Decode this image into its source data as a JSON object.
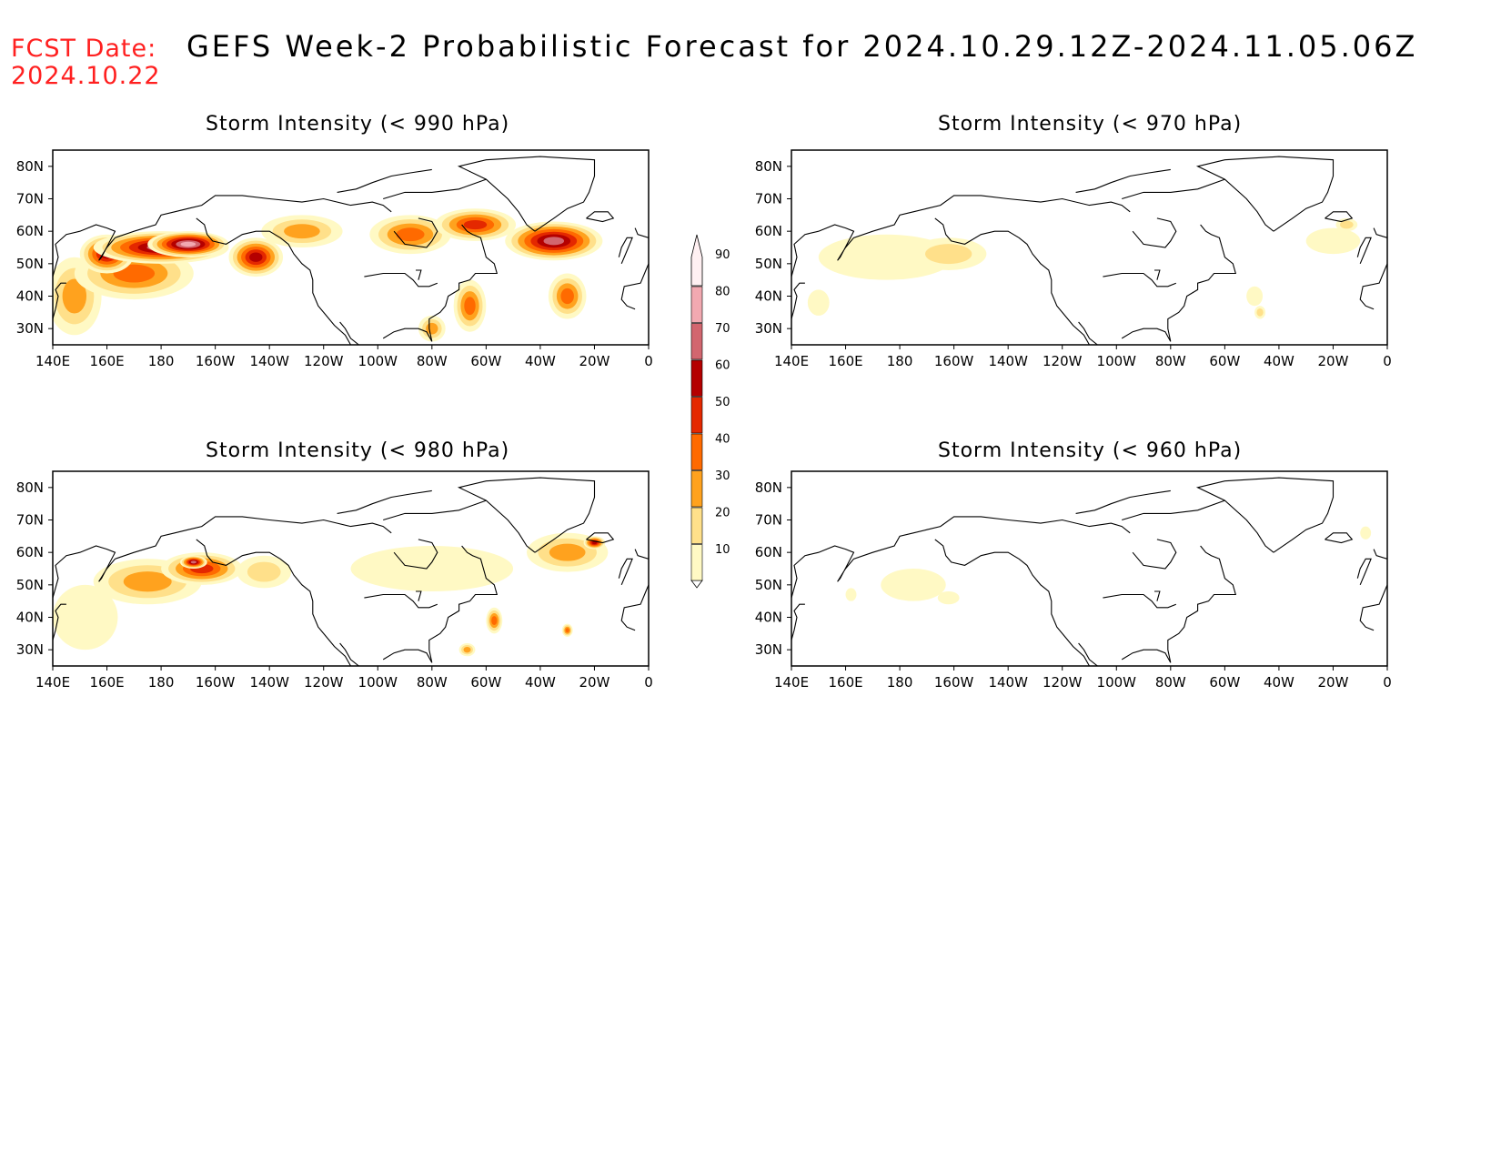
{
  "header": {
    "fcst_label": "FCST Date:",
    "fcst_date": "2024.10.22",
    "title": "GEFS Week-2 Probabilistic Forecast for 2024.10.29.12Z-2024.11.05.06Z"
  },
  "axes": {
    "lon_labels": [
      "140E",
      "160E",
      "180",
      "160W",
      "140W",
      "120W",
      "100W",
      "80W",
      "60W",
      "40W",
      "20W",
      "0"
    ],
    "lat_labels": [
      "80N",
      "70N",
      "60N",
      "50N",
      "40N",
      "30N"
    ],
    "lon_range": [
      140,
      360
    ],
    "lat_range": [
      25,
      85
    ]
  },
  "colorbar": {
    "levels": [
      "10",
      "20",
      "30",
      "40",
      "50",
      "60",
      "70",
      "80",
      "90"
    ],
    "colors": [
      "#fff9c4",
      "#ffe08a",
      "#ffa21e",
      "#ff6a00",
      "#e42800",
      "#b40000",
      "#d2666f",
      "#f2a9b1",
      "#fff0f2"
    ]
  },
  "panels": [
    {
      "id": "p990",
      "title": "Storm Intensity (< 990 hPa)",
      "blobs": [
        {
          "lon": 148,
          "lat": 40,
          "rlon": 10,
          "rlat": 12,
          "level": 3
        },
        {
          "lon": 170,
          "lat": 47,
          "rlon": 22,
          "rlat": 8,
          "level": 4
        },
        {
          "lon": 160,
          "lat": 53,
          "rlon": 10,
          "rlat": 6,
          "level": 6
        },
        {
          "lon": 180,
          "lat": 55,
          "rlon": 25,
          "rlat": 5,
          "level": 7
        },
        {
          "lon": 190,
          "lat": 56,
          "rlon": 15,
          "rlat": 4,
          "level": 8
        },
        {
          "lon": 215,
          "lat": 52,
          "rlon": 10,
          "rlat": 6,
          "level": 6
        },
        {
          "lon": 232,
          "lat": 60,
          "rlon": 15,
          "rlat": 5,
          "level": 3
        },
        {
          "lon": 272,
          "lat": 59,
          "rlon": 15,
          "rlat": 6,
          "level": 4
        },
        {
          "lon": 296,
          "lat": 62,
          "rlon": 15,
          "rlat": 5,
          "level": 5
        },
        {
          "lon": 325,
          "lat": 57,
          "rlon": 18,
          "rlat": 6,
          "level": 7
        },
        {
          "lon": 330,
          "lat": 40,
          "rlon": 7,
          "rlat": 7,
          "level": 4
        },
        {
          "lon": 294,
          "lat": 37,
          "rlon": 6,
          "rlat": 8,
          "level": 4
        },
        {
          "lon": 280,
          "lat": 30,
          "rlon": 5,
          "rlat": 4,
          "level": 3
        }
      ]
    },
    {
      "id": "p970",
      "title": "Storm Intensity (< 970 hPa)",
      "blobs": [
        {
          "lon": 175,
          "lat": 52,
          "rlon": 25,
          "rlat": 7,
          "level": 1
        },
        {
          "lon": 198,
          "lat": 53,
          "rlon": 14,
          "rlat": 5,
          "level": 2
        },
        {
          "lon": 150,
          "lat": 38,
          "rlon": 4,
          "rlat": 4,
          "level": 1
        },
        {
          "lon": 340,
          "lat": 57,
          "rlon": 10,
          "rlat": 4,
          "level": 1
        },
        {
          "lon": 345,
          "lat": 62,
          "rlon": 4,
          "rlat": 2,
          "level": 2
        },
        {
          "lon": 311,
          "lat": 40,
          "rlon": 3,
          "rlat": 3,
          "level": 1
        },
        {
          "lon": 313,
          "lat": 35,
          "rlon": 2,
          "rlat": 2,
          "level": 2
        }
      ]
    },
    {
      "id": "p980",
      "title": "Storm Intensity (< 980 hPa)",
      "blobs": [
        {
          "lon": 152,
          "lat": 40,
          "rlon": 12,
          "rlat": 10,
          "level": 1
        },
        {
          "lon": 175,
          "lat": 51,
          "rlon": 20,
          "rlat": 7,
          "level": 3
        },
        {
          "lon": 195,
          "lat": 55,
          "rlon": 15,
          "rlat": 5,
          "level": 5
        },
        {
          "lon": 192,
          "lat": 57,
          "rlon": 5,
          "rlat": 2,
          "level": 7
        },
        {
          "lon": 218,
          "lat": 54,
          "rlon": 10,
          "rlat": 5,
          "level": 2
        },
        {
          "lon": 280,
          "lat": 55,
          "rlon": 30,
          "rlat": 7,
          "level": 1
        },
        {
          "lon": 330,
          "lat": 60,
          "rlon": 15,
          "rlat": 6,
          "level": 3
        },
        {
          "lon": 340,
          "lat": 63,
          "rlon": 4,
          "rlat": 2,
          "level": 6
        },
        {
          "lon": 303,
          "lat": 39,
          "rlon": 3,
          "rlat": 4,
          "level": 4
        },
        {
          "lon": 330,
          "lat": 36,
          "rlon": 2,
          "rlat": 2,
          "level": 4
        },
        {
          "lon": 293,
          "lat": 30,
          "rlon": 3,
          "rlat": 2,
          "level": 3
        }
      ]
    },
    {
      "id": "p960",
      "title": "Storm Intensity (< 960 hPa)",
      "blobs": [
        {
          "lon": 185,
          "lat": 50,
          "rlon": 12,
          "rlat": 5,
          "level": 1
        },
        {
          "lon": 198,
          "lat": 46,
          "rlon": 4,
          "rlat": 2,
          "level": 1
        },
        {
          "lon": 162,
          "lat": 47,
          "rlon": 2,
          "rlat": 2,
          "level": 1
        },
        {
          "lon": 352,
          "lat": 66,
          "rlon": 2,
          "rlat": 2,
          "level": 1
        }
      ]
    }
  ]
}
